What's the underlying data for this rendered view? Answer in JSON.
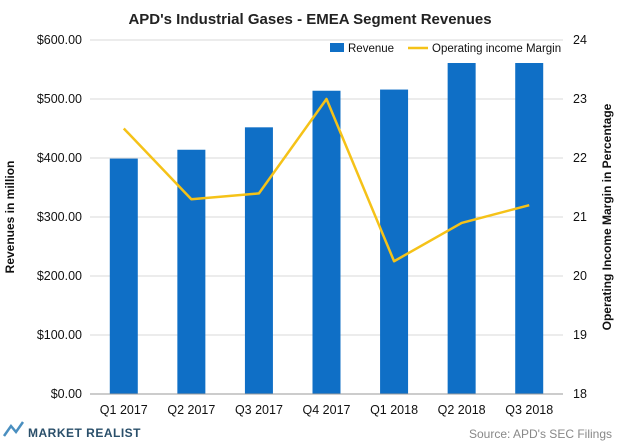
{
  "chart_data": {
    "type": "bar",
    "title": "APD's Industrial  Gases  - EMEA Segment Revenues",
    "categories": [
      "Q1 2017",
      "Q2 2017",
      "Q3 2017",
      "Q4 2017",
      "Q1 2018",
      "Q2 2018",
      "Q3 2018"
    ],
    "series": [
      {
        "name": "Revenue",
        "type": "bar",
        "axis": "left",
        "color": "#0f6fc6",
        "values": [
          399,
          414,
          452,
          514,
          516,
          561,
          561
        ]
      },
      {
        "name": "Operating income Margin",
        "type": "line",
        "axis": "right",
        "color": "#f5c218",
        "values": [
          22.5,
          21.3,
          21.4,
          23.0,
          20.25,
          20.9,
          21.2
        ]
      }
    ],
    "ylabel": "Revenues in million",
    "y2label": "Operating Income Margin in Percentage",
    "ylim": [
      0,
      600
    ],
    "y2lim": [
      18,
      24
    ],
    "yticks": [
      "$0.00",
      "$100.00",
      "$200.00",
      "$300.00",
      "$400.00",
      "$500.00",
      "$600.00"
    ],
    "y2ticks": [
      "18",
      "19",
      "20",
      "21",
      "22",
      "23",
      "24"
    ],
    "grid": true,
    "legend_position": "top-right"
  },
  "footer": {
    "source": "Source: APD's SEC Filings",
    "brand": "MARKET REALIST"
  }
}
